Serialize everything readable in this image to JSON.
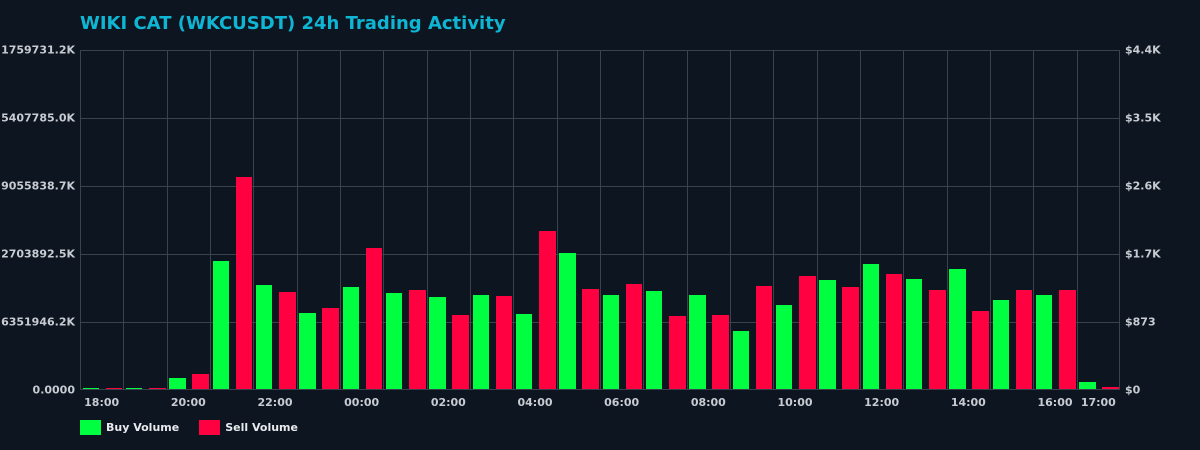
{
  "title": "WIKI CAT (WKCUSDT) 24h Trading Activity",
  "colors": {
    "background": "#0d1520",
    "title": "#0fb6d4",
    "buy": "#00ff41",
    "sell": "#ff0040",
    "grid": "#3a424d",
    "axis_text": "#c8ccd2"
  },
  "axes": {
    "left_ticks": [
      "0.0000",
      "6351946.2K",
      "2703892.5K",
      "9055838.7K",
      "5407785.0K",
      "1759731.2K"
    ],
    "right_ticks": [
      "$0",
      "$873",
      "$1.7K",
      "$2.6K",
      "$3.5K",
      "$4.4K"
    ],
    "x_ticks": [
      {
        "label": "18:00",
        "index": 0
      },
      {
        "label": "20:00",
        "index": 2
      },
      {
        "label": "22:00",
        "index": 4
      },
      {
        "label": "00:00",
        "index": 6
      },
      {
        "label": "02:00",
        "index": 8
      },
      {
        "label": "04:00",
        "index": 10
      },
      {
        "label": "06:00",
        "index": 12
      },
      {
        "label": "08:00",
        "index": 14
      },
      {
        "label": "10:00",
        "index": 16
      },
      {
        "label": "12:00",
        "index": 18
      },
      {
        "label": "14:00",
        "index": 20
      },
      {
        "label": "16:00",
        "index": 22
      },
      {
        "label": "17:00",
        "index": 23
      }
    ]
  },
  "legend": [
    {
      "label": "Buy Volume",
      "color": "#00ff41"
    },
    {
      "label": "Sell Volume",
      "color": "#ff0040"
    }
  ],
  "chart_data": {
    "type": "bar",
    "title": "WIKI CAT (WKCUSDT) 24h Trading Activity",
    "xlabel": "",
    "ylabel": "",
    "y2label": "",
    "ylim_right": [
      0,
      4366
    ],
    "grid": true,
    "legend_position": "bottom-left",
    "categories": [
      "18:00",
      "19:00",
      "20:00",
      "21:00",
      "22:00",
      "23:00",
      "00:00",
      "01:00",
      "02:00",
      "03:00",
      "04:00",
      "05:00",
      "06:00",
      "07:00",
      "08:00",
      "09:00",
      "10:00",
      "11:00",
      "12:00",
      "13:00",
      "14:00",
      "15:00",
      "16:00",
      "17:00"
    ],
    "series": [
      {
        "name": "Buy Volume",
        "color": "#00ff41",
        "values": [
          13,
          13,
          141,
          1644,
          1336,
          976,
          1310,
          1233,
          1181,
          1207,
          963,
          1746,
          1207,
          1258,
          1207,
          745,
          1079,
          1400,
          1605,
          1413,
          1541,
          1143,
          1207,
          90
        ]
      },
      {
        "name": "Sell Volume",
        "color": "#ff0040",
        "values": [
          13,
          13,
          193,
          2735,
          1246,
          1040,
          1811,
          1271,
          950,
          1194,
          2029,
          1284,
          1348,
          937,
          950,
          1323,
          1451,
          1310,
          1477,
          1271,
          1002,
          1271,
          1271,
          26
        ]
      }
    ]
  }
}
